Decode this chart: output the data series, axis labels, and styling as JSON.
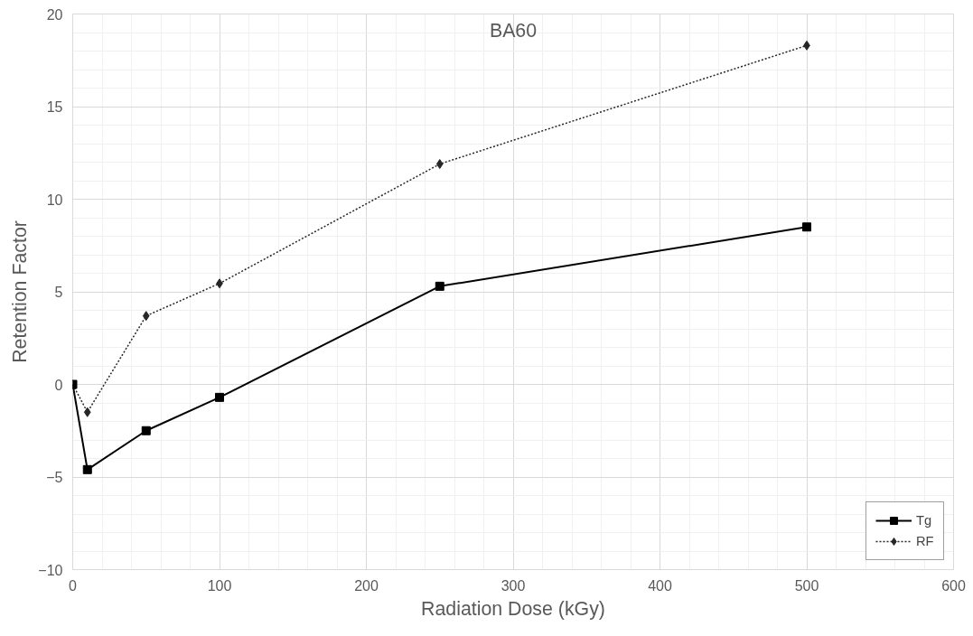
{
  "chart_data": {
    "type": "line",
    "title": "BA60",
    "xlabel": "Radiation Dose (kGy)",
    "ylabel": "Retention Factor",
    "x": [
      0,
      10,
      50,
      100,
      250,
      500
    ],
    "series": [
      {
        "name": "Tg",
        "color": "#000000",
        "values": [
          0,
          -4.6,
          -2.5,
          -0.7,
          5.3,
          8.5
        ],
        "marker": "square",
        "line_style": "solid"
      },
      {
        "name": "RF",
        "color": "#262626",
        "values": [
          0,
          -1.5,
          3.7,
          5.45,
          11.9,
          18.3
        ],
        "marker": "diamond",
        "line_style": "dotted"
      }
    ],
    "xlim": [
      0,
      600
    ],
    "xticks": [
      0,
      100,
      200,
      300,
      400,
      500,
      600
    ],
    "ylim": [
      -10,
      20
    ],
    "yticks": [
      -10,
      -5,
      0,
      5,
      10,
      15,
      20
    ],
    "grid": true,
    "legend": "bottom right"
  }
}
